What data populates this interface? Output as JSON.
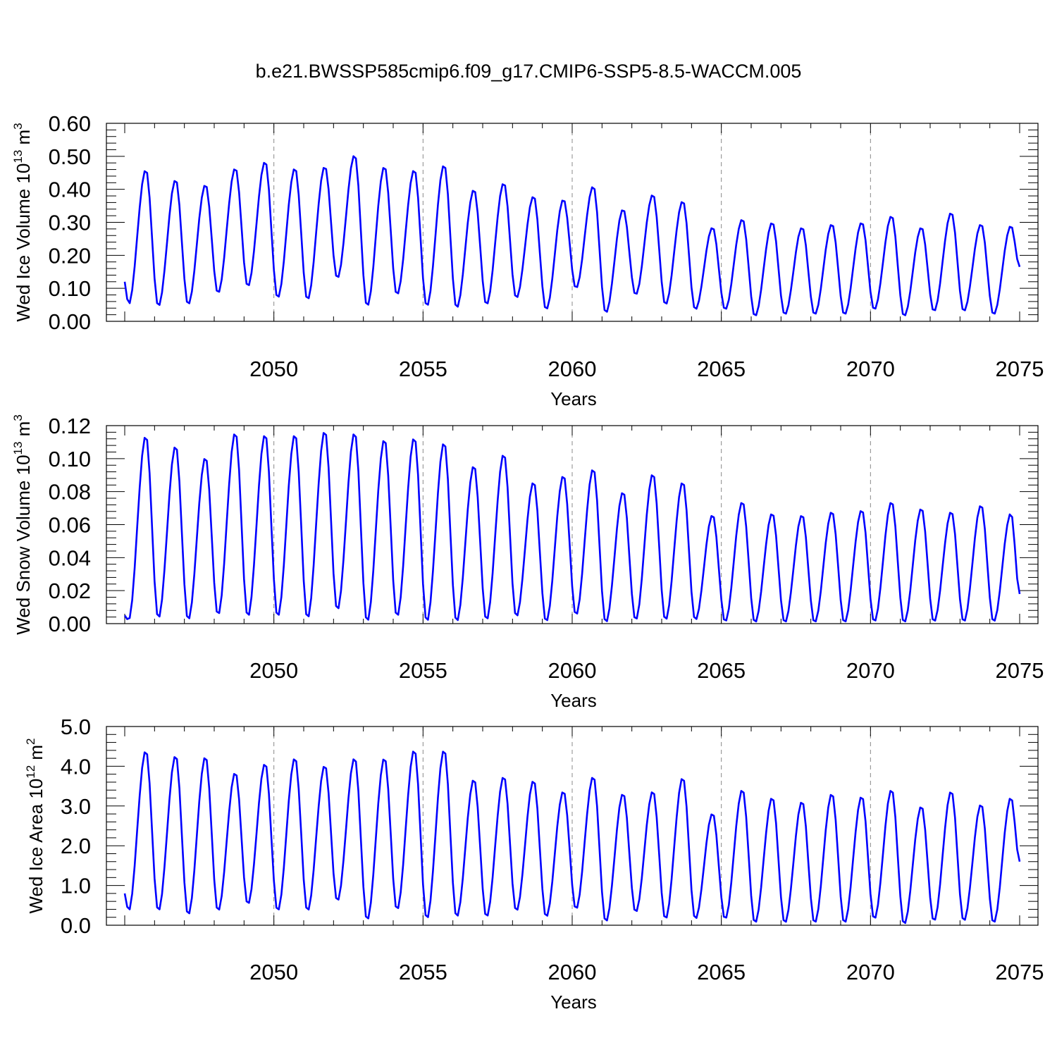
{
  "title": "b.e21.BWSSP585cmip6.f09_g17.CMIP6-SSP5-8.5-WACCM.005",
  "chart_data": [
    {
      "type": "line",
      "title": "b.e21.BWSSP585cmip6.f09_g17.CMIP6-SSP5-8.5-WACCM.005",
      "xlabel": "Years",
      "ylabel": {
        "base": "Wed Ice Volume 10",
        "sup1": "13",
        "mid": " m",
        "sup2": "3"
      },
      "xlim": [
        2045.0,
        2075.0
      ],
      "ylim": [
        0.0,
        0.6
      ],
      "xticks": [
        "2050",
        "2055",
        "2060",
        "2065",
        "2070",
        "2075"
      ],
      "yticks": [
        "0.00",
        "0.10",
        "0.20",
        "0.30",
        "0.40",
        "0.50",
        "0.60"
      ],
      "grid_x_dashed": [
        2050,
        2055,
        2060,
        2065,
        2070
      ],
      "series": [
        {
          "name": "Wed Ice Volume",
          "color": "#0000ff",
          "peak_month": 9,
          "min_month": 2,
          "start_value": 0.12,
          "maxima": [
            0.46,
            0.43,
            0.415,
            0.465,
            0.485,
            0.465,
            0.47,
            0.505,
            0.47,
            0.46,
            0.475,
            0.4,
            0.42,
            0.38,
            0.37,
            0.41,
            0.34,
            0.385,
            0.365,
            0.285,
            0.31,
            0.3,
            0.285,
            0.295,
            0.3,
            0.32,
            0.285,
            0.33,
            0.295,
            0.29
          ],
          "minima": [
            0.05,
            0.045,
            0.05,
            0.085,
            0.105,
            0.07,
            0.065,
            0.13,
            0.045,
            0.08,
            0.045,
            0.04,
            0.05,
            0.07,
            0.035,
            0.1,
            0.025,
            0.08,
            0.05,
            0.035,
            0.035,
            0.015,
            0.02,
            0.02,
            0.02,
            0.035,
            0.015,
            0.03,
            0.03,
            0.02
          ],
          "end_value": 0.165
        }
      ]
    },
    {
      "type": "line",
      "xlabel": "Years",
      "ylabel": {
        "base": "Wed Snow Volume 10",
        "sup1": "13",
        "mid": " m",
        "sup2": "3"
      },
      "xlim": [
        2045.0,
        2075.0
      ],
      "ylim": [
        0.0,
        0.12
      ],
      "xticks": [
        "2050",
        "2055",
        "2060",
        "2065",
        "2070",
        "2075"
      ],
      "yticks": [
        "0.00",
        "0.02",
        "0.04",
        "0.06",
        "0.08",
        "0.10",
        "0.12"
      ],
      "grid_x_dashed": [
        2050,
        2055,
        2060,
        2065,
        2070
      ],
      "series": [
        {
          "name": "Wed Snow Volume",
          "color": "#0000ff",
          "peak_month": 9,
          "min_month": 2,
          "start_value": 0.005,
          "maxima": [
            0.114,
            0.108,
            0.101,
            0.116,
            0.115,
            0.115,
            0.117,
            0.116,
            0.112,
            0.113,
            0.11,
            0.096,
            0.103,
            0.086,
            0.09,
            0.094,
            0.08,
            0.091,
            0.086,
            0.066,
            0.074,
            0.067,
            0.066,
            0.068,
            0.069,
            0.074,
            0.07,
            0.068,
            0.072,
            0.067
          ],
          "minima": [
            0.002,
            0.003,
            0.002,
            0.005,
            0.004,
            0.004,
            0.003,
            0.008,
            0.001,
            0.004,
            0.001,
            0.001,
            0.002,
            0.004,
            0.001,
            0.005,
            0.0005,
            0.002,
            0.002,
            0.002,
            0.001,
            0.0005,
            0.0005,
            0.0005,
            0.0005,
            0.001,
            0.0005,
            0.001,
            0.001,
            0.001
          ],
          "end_value": 0.018
        }
      ]
    },
    {
      "type": "line",
      "xlabel": "Years",
      "ylabel": {
        "base": "Wed Ice Area 10",
        "sup1": "12",
        "mid": " m",
        "sup2": "2"
      },
      "xlim": [
        2045.0,
        2075.0
      ],
      "ylim": [
        0.0,
        5.0
      ],
      "xticks": [
        "2050",
        "2055",
        "2060",
        "2065",
        "2070",
        "2075"
      ],
      "yticks": [
        "0.0",
        "1.0",
        "2.0",
        "3.0",
        "4.0",
        "5.0"
      ],
      "grid_x_dashed": [
        2050,
        2055,
        2060,
        2065,
        2070
      ],
      "series": [
        {
          "name": "Wed Ice Area",
          "color": "#0000ff",
          "peak_month": 9,
          "min_month": 2,
          "start_value": 0.8,
          "maxima": [
            4.4,
            4.28,
            4.25,
            3.85,
            4.08,
            4.22,
            4.03,
            4.22,
            4.22,
            4.42,
            4.42,
            3.68,
            3.75,
            3.65,
            3.38,
            3.75,
            3.32,
            3.38,
            3.72,
            2.82,
            3.42,
            3.22,
            3.12,
            3.32,
            3.25,
            3.42,
            3.0,
            3.38,
            3.05,
            3.22
          ],
          "minima": [
            0.35,
            0.35,
            0.25,
            0.35,
            0.52,
            0.35,
            0.35,
            0.6,
            0.12,
            0.38,
            0.15,
            0.2,
            0.2,
            0.35,
            0.2,
            0.4,
            0.08,
            0.32,
            0.15,
            0.15,
            0.15,
            0.05,
            0.05,
            0.05,
            0.05,
            0.15,
            0.02,
            0.1,
            0.1,
            0.05
          ],
          "end_value": 1.6
        }
      ]
    }
  ]
}
